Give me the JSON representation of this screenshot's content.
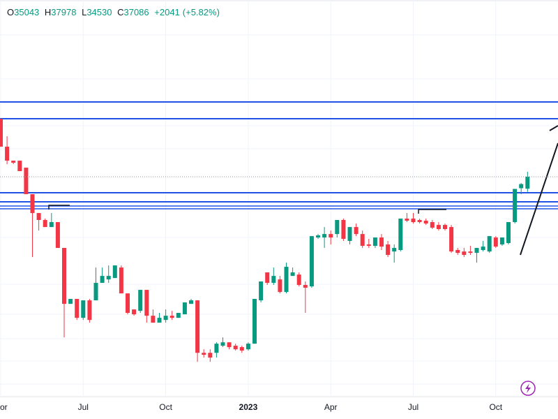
{
  "chart_data": {
    "type": "candlestick",
    "header": {
      "open_label": "O",
      "open": 35043,
      "high_label": "H",
      "high": 37978,
      "low_label": "L",
      "low": 34530,
      "close_label": "C",
      "close": 37086,
      "change": "+2041",
      "change_pct": "(+5.82%)"
    },
    "categories": [
      "or",
      null,
      null,
      null,
      null,
      null,
      null,
      null,
      null,
      null,
      null,
      null,
      null,
      "Jul",
      null,
      null,
      null,
      null,
      null,
      null,
      null,
      null,
      null,
      null,
      null,
      null,
      "Oct",
      null,
      null,
      null,
      null,
      null,
      null,
      null,
      null,
      null,
      null,
      null,
      null,
      "2023",
      null,
      null,
      null,
      null,
      null,
      null,
      null,
      null,
      null,
      null,
      null,
      null,
      "Apr",
      null,
      null,
      null,
      null,
      null,
      null,
      null,
      null,
      null,
      null,
      null,
      null,
      "Jul",
      null,
      null,
      null,
      null,
      null,
      null,
      null,
      null,
      null,
      null,
      null,
      null,
      "Oct",
      null,
      null,
      null,
      null,
      null
    ],
    "open": [
      48770,
      42740,
      40010,
      40010,
      38710,
      34150,
      31240,
      30230,
      29240,
      29930,
      26490,
      20340,
      20820,
      19040,
      20680,
      20680,
      22460,
      22830,
      22980,
      24150,
      21370,
      19810,
      19680,
      21730,
      19230,
      18610,
      18850,
      19230,
      19040,
      19360,
      20340,
      20680,
      16140,
      16140,
      16140,
      16690,
      16960,
      16690,
      16580,
      16410,
      16850,
      20680,
      23600,
      22460,
      22830,
      21510,
      23210,
      23360,
      22240,
      22090,
      27830,
      27830,
      28290,
      28290,
      30230,
      27380,
      29240,
      28290,
      26930,
      26750,
      27830,
      26930,
      26050,
      26230,
      30430,
      30430,
      30230,
      30130,
      29930,
      29530,
      29530,
      29240,
      26230,
      26050,
      26050,
      25880,
      26230,
      26050,
      27830,
      26930,
      27110,
      29930,
      35130,
      35043
    ],
    "high": [
      48770,
      44910,
      40010,
      40010,
      38710,
      34150,
      31240,
      30430,
      31240,
      29930,
      26490,
      20820,
      20820,
      20680,
      20820,
      24150,
      24150,
      24390,
      24390,
      24390,
      21370,
      19810,
      21730,
      21730,
      19810,
      19490,
      19810,
      19680,
      19490,
      20480,
      20820,
      20680,
      16410,
      16410,
      16960,
      17360,
      16960,
      16850,
      16690,
      16960,
      20820,
      22610,
      23600,
      24150,
      23210,
      24710,
      24150,
      23600,
      22610,
      28010,
      28290,
      29240,
      28760,
      30230,
      30430,
      29240,
      29730,
      28760,
      27650,
      27830,
      28290,
      27380,
      26930,
      30430,
      31240,
      31240,
      30430,
      30430,
      30230,
      29930,
      29730,
      29530,
      26490,
      26490,
      26750,
      26490,
      27380,
      28010,
      28010,
      27830,
      29930,
      35010,
      36000,
      37978
    ],
    "low": [
      42740,
      39360,
      39360,
      38080,
      34150,
      25370,
      28760,
      29240,
      29240,
      26490,
      17360,
      20340,
      18850,
      18850,
      18610,
      20680,
      22460,
      22460,
      22980,
      21370,
      19360,
      19230,
      19490,
      18610,
      18610,
      18610,
      18610,
      18850,
      19040,
      19360,
      20340,
      15470,
      15780,
      15470,
      15780,
      16580,
      16410,
      16310,
      16140,
      16310,
      16850,
      20480,
      22240,
      22240,
      21370,
      21370,
      23210,
      22090,
      19490,
      21950,
      27650,
      26490,
      26930,
      27830,
      27380,
      26930,
      28010,
      26490,
      26490,
      26490,
      26230,
      25370,
      24710,
      26050,
      29930,
      29730,
      29730,
      29530,
      28960,
      28760,
      28760,
      25880,
      25630,
      25370,
      25630,
      24710,
      26050,
      25880,
      26490,
      26750,
      26930,
      29730,
      34150,
      34530
    ],
    "close": [
      42740,
      40010,
      39620,
      38080,
      34150,
      31240,
      30230,
      29240,
      29930,
      26490,
      20340,
      20820,
      19040,
      20680,
      18850,
      22460,
      23210,
      23210,
      24390,
      21370,
      19490,
      19360,
      21730,
      19230,
      18610,
      19040,
      19230,
      19040,
      19490,
      20480,
      20680,
      16140,
      15990,
      15780,
      16850,
      16960,
      16580,
      16410,
      16310,
      16850,
      20820,
      22610,
      22460,
      23210,
      21510,
      24230,
      23600,
      22240,
      21950,
      28010,
      28110,
      28290,
      27830,
      30230,
      27650,
      29240,
      28290,
      26750,
      26750,
      27830,
      26660,
      25630,
      26490,
      30430,
      30130,
      29930,
      29930,
      29730,
      29150,
      28960,
      28960,
      26050,
      25880,
      25630,
      25880,
      26490,
      26660,
      28010,
      26660,
      27830,
      29930,
      35010,
      35820,
      37086
    ],
    "ylim": [
      13250,
      85480
    ],
    "log_scale": true,
    "grid": true,
    "up_color": "#089981",
    "down_color": "#f23645"
  }
}
